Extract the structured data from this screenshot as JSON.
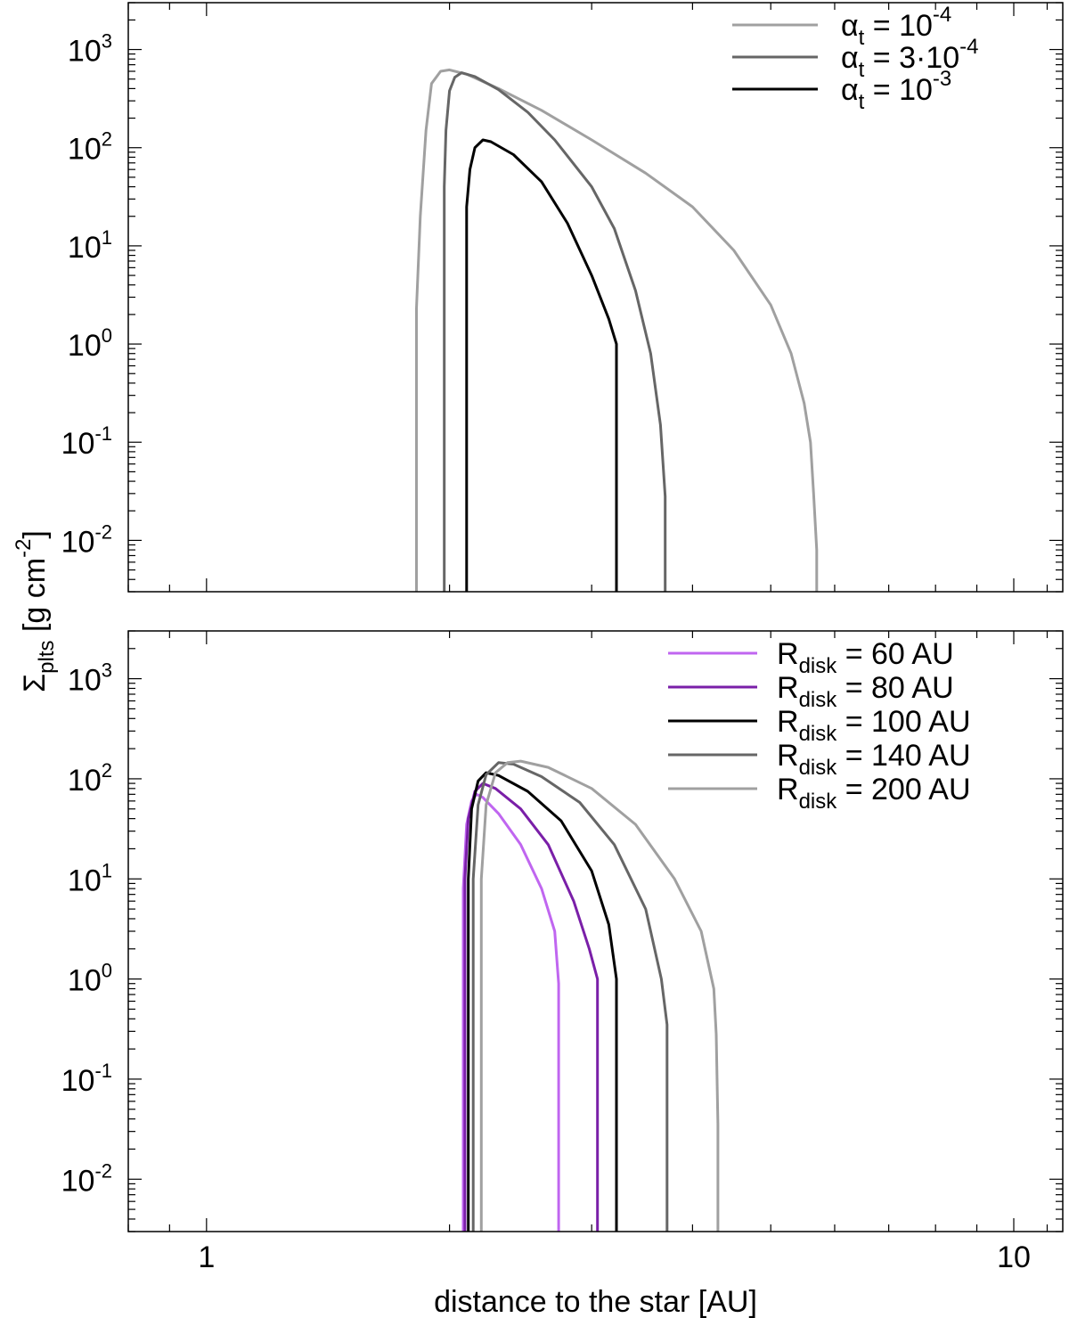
{
  "chart_data": [
    {
      "type": "line",
      "title": "",
      "xscale": "log",
      "yscale": "log",
      "xlim": [
        0.8,
        11.5
      ],
      "ylim": [
        0.003,
        3000
      ],
      "xticks": [
        {
          "value": 1,
          "label": ""
        },
        {
          "value": 10,
          "label": ""
        }
      ],
      "yticks": [
        {
          "value": 1000,
          "base": "10",
          "exp": "3"
        },
        {
          "value": 100,
          "base": "10",
          "exp": "2"
        },
        {
          "value": 10,
          "base": "10",
          "exp": "1"
        },
        {
          "value": 1,
          "base": "10",
          "exp": "0"
        },
        {
          "value": 0.1,
          "base": "10",
          "exp": "-1"
        },
        {
          "value": 0.01,
          "base": "10",
          "exp": "-2"
        }
      ],
      "legend_position": "top-right",
      "series": [
        {
          "name": "α",
          "name_sub": "t",
          "name_rest": " = 10",
          "name_sup": "-4",
          "color": "#a0a0a0",
          "points": [
            [
              1.82,
              0.003
            ],
            [
              1.82,
              2.3
            ],
            [
              1.84,
              20
            ],
            [
              1.87,
              150
            ],
            [
              1.9,
              450
            ],
            [
              1.95,
              600
            ],
            [
              2.0,
              620
            ],
            [
              2.1,
              560
            ],
            [
              2.3,
              400
            ],
            [
              2.6,
              240
            ],
            [
              3.0,
              120
            ],
            [
              3.5,
              55
            ],
            [
              4.0,
              25
            ],
            [
              4.5,
              9
            ],
            [
              5.0,
              2.5
            ],
            [
              5.3,
              0.8
            ],
            [
              5.5,
              0.25
            ],
            [
              5.6,
              0.1
            ],
            [
              5.65,
              0.03
            ],
            [
              5.7,
              0.008
            ],
            [
              5.7,
              0.003
            ]
          ]
        },
        {
          "name": "α",
          "name_sub": "t",
          "name_rest": " = 3·10",
          "name_sup": "-4",
          "color": "#666666",
          "points": [
            [
              1.97,
              0.003
            ],
            [
              1.97,
              40
            ],
            [
              1.98,
              150
            ],
            [
              2.0,
              380
            ],
            [
              2.03,
              520
            ],
            [
              2.07,
              580
            ],
            [
              2.15,
              530
            ],
            [
              2.3,
              390
            ],
            [
              2.5,
              230
            ],
            [
              2.7,
              120
            ],
            [
              3.0,
              40
            ],
            [
              3.2,
              15
            ],
            [
              3.4,
              3.5
            ],
            [
              3.55,
              0.8
            ],
            [
              3.65,
              0.15
            ],
            [
              3.7,
              0.028
            ],
            [
              3.7,
              0.003
            ]
          ]
        },
        {
          "name": "α",
          "name_sub": "t",
          "name_rest": " = 10",
          "name_sup": "-3",
          "color": "#000000",
          "points": [
            [
              2.1,
              0.003
            ],
            [
              2.1,
              25
            ],
            [
              2.12,
              60
            ],
            [
              2.15,
              100
            ],
            [
              2.2,
              120
            ],
            [
              2.25,
              115
            ],
            [
              2.4,
              85
            ],
            [
              2.6,
              45
            ],
            [
              2.8,
              17
            ],
            [
              3.0,
              5
            ],
            [
              3.15,
              1.8
            ],
            [
              3.22,
              1.0
            ],
            [
              3.22,
              0.003
            ]
          ]
        }
      ]
    },
    {
      "type": "line",
      "title": "",
      "xlabel": "distance to the star [AU]",
      "ylabel": "Σ",
      "ylabel_sub": "plts",
      "ylabel_rest": " [g cm",
      "ylabel_sup": "-2",
      "ylabel_end": "]",
      "xscale": "log",
      "yscale": "log",
      "xlim": [
        0.8,
        11.5
      ],
      "ylim": [
        0.003,
        3000
      ],
      "xticks": [
        {
          "value": 1,
          "label": "1"
        },
        {
          "value": 10,
          "label": "10"
        }
      ],
      "yticks": [
        {
          "value": 1000,
          "base": "10",
          "exp": "3"
        },
        {
          "value": 100,
          "base": "10",
          "exp": "2"
        },
        {
          "value": 10,
          "base": "10",
          "exp": "1"
        },
        {
          "value": 1,
          "base": "10",
          "exp": "0"
        },
        {
          "value": 0.1,
          "base": "10",
          "exp": "-1"
        },
        {
          "value": 0.01,
          "base": "10",
          "exp": "-2"
        }
      ],
      "legend_position": "top-right",
      "series": [
        {
          "name": "R",
          "name_sub": "disk",
          "name_rest": " = 60 AU",
          "color": "#c066f0",
          "points": [
            [
              2.08,
              0.003
            ],
            [
              2.08,
              8
            ],
            [
              2.1,
              35
            ],
            [
              2.13,
              60
            ],
            [
              2.16,
              70
            ],
            [
              2.2,
              65
            ],
            [
              2.3,
              45
            ],
            [
              2.45,
              22
            ],
            [
              2.6,
              8
            ],
            [
              2.7,
              3
            ],
            [
              2.73,
              0.9
            ],
            [
              2.73,
              0.003
            ]
          ]
        },
        {
          "name": "R",
          "name_sub": "disk",
          "name_rest": " = 80 AU",
          "color": "#7a1fa8",
          "points": [
            [
              2.09,
              0.003
            ],
            [
              2.09,
              10
            ],
            [
              2.11,
              40
            ],
            [
              2.15,
              75
            ],
            [
              2.2,
              90
            ],
            [
              2.28,
              80
            ],
            [
              2.45,
              50
            ],
            [
              2.65,
              22
            ],
            [
              2.85,
              6
            ],
            [
              2.98,
              2
            ],
            [
              3.05,
              1.0
            ],
            [
              3.05,
              0.003
            ]
          ]
        },
        {
          "name": "R",
          "name_sub": "disk",
          "name_rest": " = 100 AU",
          "color": "#000000",
          "points": [
            [
              2.11,
              0.003
            ],
            [
              2.11,
              10
            ],
            [
              2.13,
              50
            ],
            [
              2.17,
              95
            ],
            [
              2.22,
              115
            ],
            [
              2.3,
              108
            ],
            [
              2.5,
              75
            ],
            [
              2.75,
              38
            ],
            [
              3.0,
              12
            ],
            [
              3.15,
              3.5
            ],
            [
              3.22,
              1.0
            ],
            [
              3.22,
              0.003
            ]
          ]
        },
        {
          "name": "R",
          "name_sub": "disk",
          "name_rest": " = 140 AU",
          "color": "#666666",
          "points": [
            [
              2.14,
              0.003
            ],
            [
              2.14,
              10
            ],
            [
              2.17,
              55
            ],
            [
              2.22,
              110
            ],
            [
              2.3,
              145
            ],
            [
              2.4,
              140
            ],
            [
              2.6,
              105
            ],
            [
              2.9,
              58
            ],
            [
              3.2,
              22
            ],
            [
              3.5,
              5
            ],
            [
              3.66,
              1.0
            ],
            [
              3.72,
              0.35
            ],
            [
              3.72,
              0.003
            ]
          ]
        },
        {
          "name": "R",
          "name_sub": "disk",
          "name_rest": " = 200 AU",
          "color": "#a0a0a0",
          "points": [
            [
              2.19,
              0.003
            ],
            [
              2.19,
              10
            ],
            [
              2.22,
              55
            ],
            [
              2.28,
              115
            ],
            [
              2.36,
              145
            ],
            [
              2.45,
              150
            ],
            [
              2.65,
              130
            ],
            [
              3.0,
              80
            ],
            [
              3.4,
              35
            ],
            [
              3.8,
              10
            ],
            [
              4.1,
              3
            ],
            [
              4.25,
              0.8
            ],
            [
              4.28,
              0.28
            ],
            [
              4.3,
              0.035
            ],
            [
              4.3,
              0.003
            ]
          ]
        }
      ]
    }
  ]
}
